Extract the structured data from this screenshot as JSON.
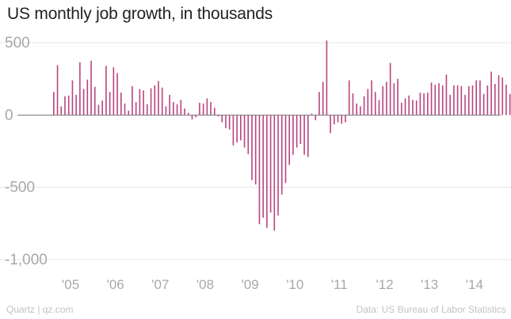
{
  "chart_data": {
    "type": "bar",
    "title": "US monthly job growth, in thousands",
    "color": "#b9457d",
    "ylim": [
      -1000,
      540
    ],
    "yticks": [
      500,
      0,
      -500,
      -1000
    ],
    "ytick_labels": [
      "500",
      "0",
      "-500",
      "-1,000"
    ],
    "xticks": [
      2005,
      2006,
      2007,
      2008,
      2009,
      2010,
      2011,
      2012,
      2013,
      2014
    ],
    "xtick_labels": [
      "'05",
      "'06",
      "'07",
      "'08",
      "'09",
      "'10",
      "'11",
      "'12",
      "'13",
      "'14"
    ],
    "start": "2004-10",
    "values": [
      160,
      345,
      60,
      130,
      135,
      240,
      140,
      365,
      180,
      245,
      375,
      195,
      70,
      100,
      340,
      160,
      330,
      290,
      155,
      80,
      30,
      200,
      90,
      180,
      170,
      75,
      185,
      205,
      235,
      190,
      60,
      140,
      90,
      75,
      105,
      45,
      15,
      -30,
      -15,
      85,
      80,
      115,
      90,
      50,
      -10,
      -50,
      -90,
      -100,
      -210,
      -190,
      -175,
      -225,
      -270,
      -450,
      -480,
      -755,
      -710,
      -780,
      -675,
      -800,
      -695,
      -550,
      -470,
      -345,
      -275,
      -225,
      -200,
      -275,
      -290,
      10,
      -35,
      160,
      230,
      515,
      -125,
      -65,
      -50,
      -60,
      -50,
      240,
      150,
      80,
      60,
      130,
      180,
      240,
      160,
      105,
      200,
      230,
      360,
      220,
      250,
      85,
      115,
      135,
      105,
      100,
      155,
      150,
      155,
      225,
      210,
      220,
      205,
      280,
      140,
      205,
      205,
      200,
      140,
      200,
      205,
      240,
      240,
      145,
      205,
      300,
      215,
      275,
      260,
      210,
      145
    ]
  },
  "footer": {
    "source_left": "Quartz | qz.com",
    "source_right": "Data: US Bureau of Labor Statistics"
  }
}
